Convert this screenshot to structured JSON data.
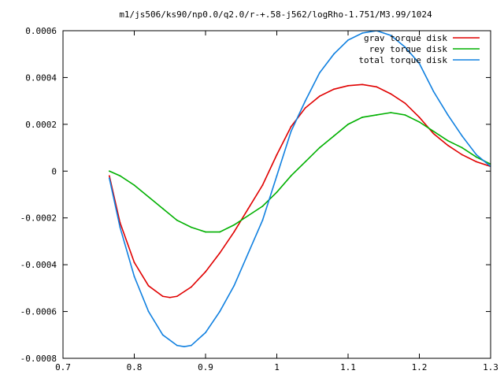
{
  "chart_data": {
    "type": "line",
    "title": "m1/js506/ks90/np0.0/q2.0/r-+.58-j562/logRho-1.751/M3.99/1024",
    "xlabel": "",
    "ylabel": "",
    "xlim": [
      0.7,
      1.3
    ],
    "ylim": [
      -0.0008,
      0.0006
    ],
    "grid": false,
    "legend_position": "top-right",
    "x_ticks": [
      0.7,
      0.8,
      0.9,
      1.0,
      1.1,
      1.2,
      1.3
    ],
    "x_tick_labels": [
      "0.7",
      "0.8",
      "0.9",
      "1",
      "1.1",
      "1.2",
      "1.3"
    ],
    "y_ticks": [
      -0.0008,
      -0.0006,
      -0.0004,
      -0.0002,
      0,
      0.0002,
      0.0004,
      0.0006
    ],
    "y_tick_labels": [
      "-0.0008",
      "-0.0006",
      "-0.0004",
      "-0.0002",
      "0",
      "0.0002",
      "0.0004",
      "0.0006"
    ],
    "series": [
      {
        "name": "grav torque disk",
        "color": "#e00000",
        "x": [
          0.765,
          0.78,
          0.8,
          0.82,
          0.84,
          0.85,
          0.86,
          0.88,
          0.9,
          0.92,
          0.94,
          0.96,
          0.98,
          1.0,
          1.02,
          1.04,
          1.06,
          1.08,
          1.1,
          1.12,
          1.14,
          1.16,
          1.18,
          1.2,
          1.22,
          1.24,
          1.26,
          1.28,
          1.3
        ],
        "y": [
          -2e-05,
          -0.00022,
          -0.00039,
          -0.00049,
          -0.000535,
          -0.00054,
          -0.000535,
          -0.000495,
          -0.00043,
          -0.00035,
          -0.00026,
          -0.00016,
          -6e-05,
          7e-05,
          0.00019,
          0.00027,
          0.00032,
          0.00035,
          0.000365,
          0.00037,
          0.00036,
          0.00033,
          0.00029,
          0.00023,
          0.00016,
          0.00011,
          7e-05,
          4e-05,
          2e-05
        ]
      },
      {
        "name": "rey torque disk",
        "color": "#00b000",
        "x": [
          0.765,
          0.78,
          0.8,
          0.82,
          0.84,
          0.86,
          0.88,
          0.9,
          0.92,
          0.94,
          0.96,
          0.98,
          1.0,
          1.02,
          1.04,
          1.06,
          1.08,
          1.1,
          1.12,
          1.14,
          1.16,
          1.18,
          1.2,
          1.22,
          1.24,
          1.26,
          1.28,
          1.3
        ],
        "y": [
          0.0,
          -2e-05,
          -6e-05,
          -0.00011,
          -0.00016,
          -0.00021,
          -0.00024,
          -0.00026,
          -0.00026,
          -0.00023,
          -0.00019,
          -0.00015,
          -9e-05,
          -2e-05,
          4e-05,
          0.0001,
          0.00015,
          0.0002,
          0.00023,
          0.00024,
          0.00025,
          0.00024,
          0.00021,
          0.00017,
          0.00013,
          0.0001,
          6e-05,
          3e-05
        ]
      },
      {
        "name": "total torque disk",
        "color": "#1080e0",
        "x": [
          0.765,
          0.78,
          0.8,
          0.82,
          0.84,
          0.86,
          0.87,
          0.88,
          0.9,
          0.92,
          0.94,
          0.96,
          0.98,
          1.0,
          1.02,
          1.04,
          1.06,
          1.08,
          1.1,
          1.12,
          1.14,
          1.16,
          1.18,
          1.2,
          1.22,
          1.24,
          1.26,
          1.28,
          1.3
        ],
        "y": [
          -3e-05,
          -0.00024,
          -0.00045,
          -0.0006,
          -0.0007,
          -0.000745,
          -0.00075,
          -0.000745,
          -0.00069,
          -0.0006,
          -0.00049,
          -0.00035,
          -0.00021,
          -2e-05,
          0.00017,
          0.0003,
          0.00042,
          0.0005,
          0.00056,
          0.00059,
          0.0006,
          0.00058,
          0.00053,
          0.00046,
          0.00034,
          0.00024,
          0.00015,
          7e-05,
          2e-05
        ]
      }
    ]
  }
}
